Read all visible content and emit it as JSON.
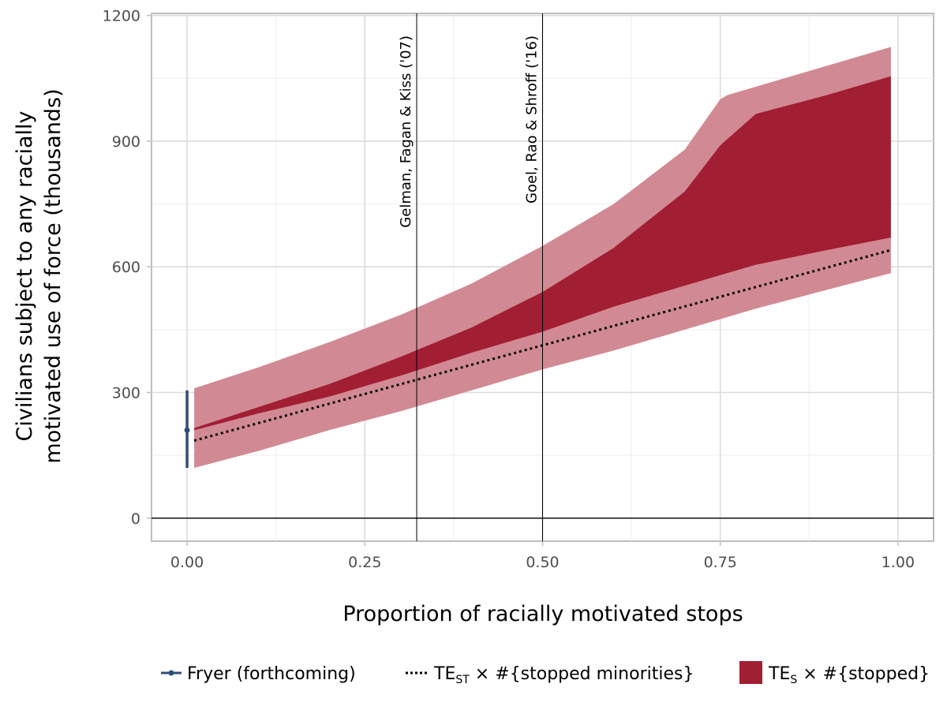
{
  "chart_data": {
    "type": "area",
    "title": "",
    "xlabel": "Proportion of racially motivated stops",
    "ylabel": [
      "Civilians subject to any racially",
      "motivated use of force (thousands)"
    ],
    "xlim": [
      -0.05,
      1.05
    ],
    "ylim": [
      -55,
      1205
    ],
    "x_ticks": [
      0,
      0.25,
      0.5,
      0.75,
      1
    ],
    "x_tick_labels": [
      "0.00",
      "0.25",
      "0.50",
      "0.75",
      "1.00"
    ],
    "y_ticks": [
      0,
      300,
      600,
      900,
      1200
    ],
    "y_tick_labels": [
      "0",
      "300",
      "600",
      "900",
      "1200"
    ],
    "grid": true,
    "zero_line": 0,
    "reference_lines": [
      {
        "x": 0.323,
        "label": "Gelman, Fagan & Kiss ('07)"
      },
      {
        "x": 0.5,
        "label": "Goel, Rao & Shroff ('16)"
      }
    ],
    "outer_band": {
      "x": [
        0.01,
        0.1,
        0.2,
        0.3,
        0.4,
        0.5,
        0.6,
        0.7,
        0.75,
        0.76,
        0.8,
        0.9,
        0.99
      ],
      "lower": [
        120,
        160,
        210,
        255,
        305,
        355,
        400,
        450,
        475,
        480,
        500,
        545,
        585
      ],
      "upper": [
        310,
        360,
        420,
        485,
        560,
        650,
        750,
        880,
        1000,
        1010,
        1030,
        1080,
        1125
      ],
      "color": "#d18a94"
    },
    "inner_band": {
      "x": [
        0.01,
        0.1,
        0.2,
        0.3,
        0.4,
        0.5,
        0.6,
        0.7,
        0.75,
        0.8,
        0.9,
        0.99
      ],
      "lower": [
        210,
        250,
        290,
        340,
        395,
        445,
        505,
        555,
        580,
        605,
        640,
        670
      ],
      "upper": [
        215,
        265,
        320,
        385,
        455,
        540,
        645,
        780,
        890,
        965,
        1010,
        1055
      ],
      "color": "#a11e33"
    },
    "dotted_series": {
      "name": "TEST × #{stopped minorities}",
      "x": [
        0.01,
        0.99
      ],
      "y": [
        185,
        640
      ],
      "color": "#000000"
    },
    "point_estimate": {
      "name": "Fryer (forthcoming)",
      "x": 0,
      "y": 210,
      "low": 120,
      "high": 305,
      "color": "#2e4e7a"
    },
    "legend": [
      {
        "kind": "pointrange",
        "text": "Fryer (forthcoming)"
      },
      {
        "kind": "dotted",
        "text_main": "TE",
        "text_sub": "ST",
        "text_rest": " × #{stopped minorities}"
      },
      {
        "kind": "fill",
        "text_main": "TE",
        "text_sub": "S",
        "text_rest": " × #{stopped}"
      }
    ]
  }
}
